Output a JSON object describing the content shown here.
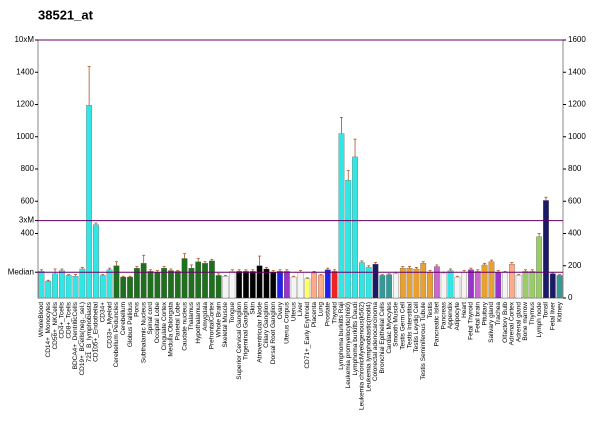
{
  "chart_data": {
    "type": "bar",
    "title": "38521_at",
    "categories": [
      "WholeBlood",
      "CD14+_Monocytes",
      "CD56+_NKCells",
      "CD4+_Tcells",
      "CD8+_Tcells",
      "BDCA4+_DentriticCells",
      "CD19+_BCells(neg._sel.)",
      "721_B_lymphoblasts",
      "CD105+_Endothelial",
      "CD34+",
      "CD33+_Myeloid",
      "Cerebellum Peduncles",
      "Cerebellum",
      "Globus Pallidus",
      "Pons",
      "Subthalamic Nucleus",
      "Spinal cord",
      "Occipital Lobe",
      "Cingulate Cortex",
      "Medulla Oblongata",
      "Parietal Lobe",
      "Caudate nucleus",
      "Thalamus",
      "Hypothalamus",
      "Amygdala",
      "PrefrontalCortex",
      "Whole Brain",
      "Skeletal Muscle",
      "Tongue",
      "Superior Cervical Ganglion",
      "Trigeminal Ganglion",
      "Skin",
      "Atrioventricular Node",
      "Ciliary Ganglion",
      "Dorsal Root Ganglion",
      "Ovary",
      "Uterus Corpus",
      "Uterus",
      "Liver",
      "CD71+_Early Erythroid",
      "Placenta",
      "Lung",
      "Prostate",
      "Thyroid",
      "Lymphoma burkitts Raji",
      "Leukemia promyelocytic(hl60)",
      "Lymphoma burkitts Daudi",
      "Leukemia chronicMyelogenous(k562)",
      "Leukemia lymphoblastic(molt4)",
      "Colorectal adenocarcinoma",
      "Bronchial Epithelial Cells",
      "Cardiac Myocytes",
      "Smooth Muscle",
      "Testis Germ Cell",
      "Testis Interstitial",
      "Testis Leydig Cell",
      "Testis Seminiferous Tubule",
      "Testis",
      "Pancreatic Islet",
      "Pancreas",
      "Appendix",
      "Adipocyte",
      "Heart",
      "Fetal Thyroid",
      "Fetal brain",
      "Pituitary",
      "Salivary gland",
      "Trachea",
      "Olfactory Bulb",
      "Adrenal Cortex",
      "Adrenal gland",
      "Bone marrow",
      "Thymus",
      "Lymph node",
      "Tonsil",
      "Fetal liver",
      "Kidney"
    ],
    "values": [
      165,
      105,
      150,
      170,
      140,
      135,
      180,
      1195,
      455,
      140,
      175,
      200,
      130,
      130,
      185,
      215,
      165,
      160,
      185,
      170,
      165,
      245,
      185,
      225,
      215,
      230,
      140,
      135,
      165,
      165,
      165,
      165,
      200,
      180,
      160,
      165,
      165,
      130,
      160,
      120,
      155,
      140,
      175,
      165,
      1020,
      730,
      875,
      220,
      190,
      210,
      140,
      145,
      150,
      185,
      185,
      180,
      215,
      160,
      195,
      155,
      170,
      130,
      160,
      175,
      165,
      205,
      225,
      160,
      160,
      210,
      140,
      165,
      165,
      380,
      605,
      150,
      140
    ],
    "errors": [
      10,
      5,
      30,
      10,
      5,
      10,
      10,
      240,
      10,
      5,
      10,
      25,
      5,
      5,
      10,
      50,
      10,
      10,
      10,
      10,
      5,
      30,
      20,
      20,
      10,
      10,
      10,
      5,
      10,
      10,
      10,
      10,
      60,
      10,
      10,
      10,
      10,
      5,
      10,
      5,
      10,
      5,
      10,
      10,
      100,
      60,
      110,
      10,
      10,
      10,
      5,
      5,
      10,
      10,
      10,
      10,
      10,
      10,
      10,
      5,
      10,
      5,
      10,
      10,
      10,
      10,
      10,
      10,
      5,
      10,
      5,
      10,
      10,
      20,
      20,
      5,
      5
    ],
    "colors": [
      "#33e6e6",
      "#33e6e6",
      "#33e6e6",
      "#33e6e6",
      "#33e6e6",
      "#33e6e6",
      "#33e6e6",
      "#33e6e6",
      "#33e6e6",
      "#33e6e6",
      "#33e6e6",
      "#1f6f1f",
      "#1f6f1f",
      "#1f6f1f",
      "#1f6f1f",
      "#1f6f1f",
      "#1f6f1f",
      "#1f6f1f",
      "#1f6f1f",
      "#1f6f1f",
      "#1f6f1f",
      "#1f6f1f",
      "#1f6f1f",
      "#1f6f1f",
      "#1f6f1f",
      "#1f6f1f",
      "#1f6f1f",
      "#f4f4f4",
      "#f4f4f4",
      "#000000",
      "#000000",
      "#000000",
      "#000000",
      "#000000",
      "#000000",
      "#2222ee",
      "#9933cc",
      "#f4f4f4",
      "#f4f4f4",
      "#ffff66",
      "#ffaa88",
      "#ffaa88",
      "#2222ee",
      "#ee2222",
      "#33e6e6",
      "#33e6e6",
      "#33e6e6",
      "#33e6e6",
      "#33e6e6",
      "#1a1a66",
      "#339999",
      "#339999",
      "#f4f4f4",
      "#e8a030",
      "#e8a030",
      "#e8a030",
      "#e8a030",
      "#e8a030",
      "#cc66cc",
      "#f4f4f4",
      "#33e6e6",
      "#f4f4f4",
      "#f4f4f4",
      "#9933cc",
      "#cc66cc",
      "#e8a030",
      "#e8a030",
      "#9933cc",
      "#f4f4f4",
      "#ffaa88",
      "#f4f4f4",
      "#99cc66",
      "#99cc66",
      "#99cc66",
      "#1a1a66",
      "#1a1a66",
      "#339999"
    ],
    "error_color": "#b05020",
    "ylim": [
      0,
      1600
    ],
    "yticks": [
      {
        "value": 160,
        "label": "Median"
      },
      400,
      {
        "value": 480,
        "label": "3xM"
      },
      600,
      800,
      1000,
      1200,
      1400,
      {
        "value": 1600,
        "label": "10xM"
      }
    ],
    "reference_lines": [
      160,
      480,
      1600
    ],
    "reference_color": "#660066",
    "y2lim": [
      0,
      1600
    ],
    "y2ticks": [
      0,
      200,
      400,
      600,
      800,
      1000,
      1200,
      1400,
      1600
    ]
  }
}
